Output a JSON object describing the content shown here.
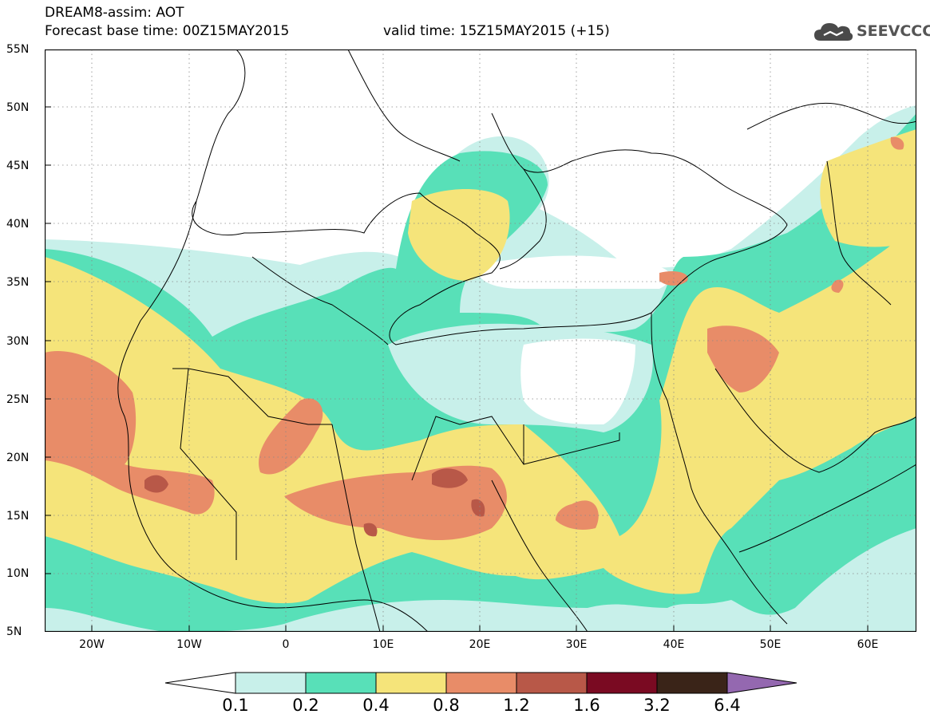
{
  "header": {
    "title": "DREAM8-assim: AOT",
    "base_time": "Forecast base time: 00Z15MAY2015",
    "valid_time": "valid time: 15Z15MAY2015 (+15)"
  },
  "logo": {
    "text": "SEEVCCC",
    "icon": "cloud-icon"
  },
  "map": {
    "lat_labels": [
      "55N",
      "50N",
      "45N",
      "40N",
      "35N",
      "30N",
      "25N",
      "20N",
      "15N",
      "10N",
      "5N"
    ],
    "lon_labels": [
      "20W",
      "10W",
      "0",
      "10E",
      "20E",
      "30E",
      "40E",
      "50E",
      "60E"
    ],
    "grid": "dotted"
  },
  "colorbar": {
    "labels": [
      "0.1",
      "0.2",
      "0.4",
      "0.8",
      "1.2",
      "1.6",
      "3.2",
      "6.4"
    ],
    "colors": [
      "#ffffff",
      "#c8f0ea",
      "#58e0b8",
      "#f5e47a",
      "#e88c68",
      "#b85848",
      "#7a0a22",
      "#3a2418",
      "#9468b0"
    ]
  },
  "colors": {
    "c01": "#c8f0ea",
    "c02": "#58e0b8",
    "c04": "#f5e47a",
    "c08": "#e88c68",
    "c12": "#b85848"
  }
}
